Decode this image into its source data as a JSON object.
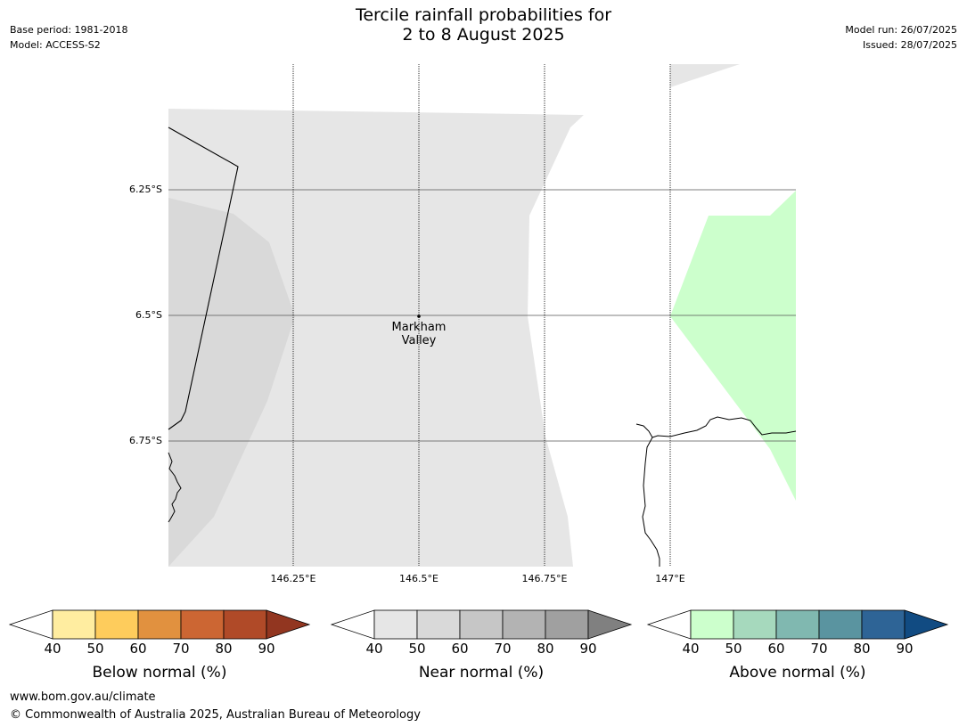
{
  "header": {
    "title_line1": "Tercile rainfall probabilities for",
    "title_line2": "2 to 8 August 2025",
    "base_period": "Base period: 1981-2018",
    "model": "Model: ACCESS-S2",
    "model_run": "Model run: 26/07/2025",
    "issued": "Issued: 28/07/2025"
  },
  "map": {
    "latitude_labels": [
      "6.25°S",
      "6.5°S",
      "6.75°S"
    ],
    "longitude_labels": [
      "146.25°E",
      "146.5°E",
      "146.75°E",
      "147°E"
    ],
    "place": {
      "name_line1": "Markham",
      "name_line2": "Valley"
    },
    "colors": {
      "near_normal_40_50": "#e6e6e6",
      "near_normal_50_60": "#d9d9d9",
      "above_normal_40_50": "#ccffcc",
      "coastline": "#000000",
      "gridline": "#555555"
    }
  },
  "colorbars": {
    "ticks": [
      "40",
      "50",
      "60",
      "70",
      "80",
      "90"
    ],
    "below": {
      "title": "Below normal (%)",
      "colors": [
        "#ffeda0",
        "#fecc5c",
        "#e1913f",
        "#cc6633",
        "#b04a28",
        "#923620"
      ]
    },
    "near": {
      "title": "Near normal (%)",
      "colors": [
        "#e6e6e6",
        "#d9d9d9",
        "#c6c6c6",
        "#b3b3b3",
        "#a0a0a0",
        "#808080"
      ]
    },
    "above": {
      "title": "Above normal (%)",
      "colors": [
        "#ccffcc",
        "#a6d9bd",
        "#80b8b0",
        "#5a94a0",
        "#2e6496",
        "#114b82"
      ]
    }
  },
  "footer": {
    "url": "www.bom.gov.au/climate",
    "copyright": "© Commonwealth of Australia 2025, Australian Bureau of Meteorology"
  }
}
